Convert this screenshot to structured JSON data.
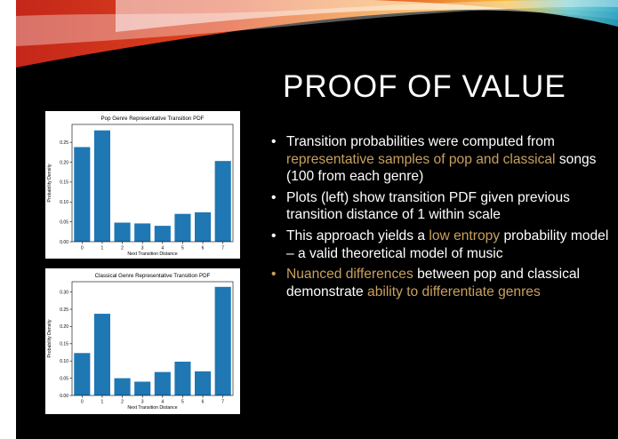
{
  "slide": {
    "title": "PROOF OF VALUE",
    "bullets": [
      {
        "parts": [
          {
            "text": "Transition probabilities were computed from ",
            "hl": false
          },
          {
            "text": "representative samples of pop and classical",
            "hl": true
          },
          {
            "text": " songs (100 from each genre)",
            "hl": false
          }
        ]
      },
      {
        "parts": [
          {
            "text": "Plots (left) show transition PDF given previous transition distance of 1 within scale",
            "hl": false
          }
        ]
      },
      {
        "parts": [
          {
            "text": "This approach yields a ",
            "hl": false
          },
          {
            "text": "low entropy",
            "hl": true
          },
          {
            "text": " probability model – a valid theoretical model of music",
            "hl": false
          }
        ]
      },
      {
        "parts": [
          {
            "text": "Nuanced differences",
            "hl": true
          },
          {
            "text": " between pop and classical demonstrate ",
            "hl": false
          },
          {
            "text": "ability to differentiate genres",
            "hl": true
          }
        ]
      }
    ],
    "colors": {
      "background": "#000000",
      "text": "#ffffff",
      "highlight": "#c9a15c",
      "bar": "#1f77b4"
    }
  },
  "chart_data": [
    {
      "type": "bar",
      "title": "Pop Genre Representative Transition PDF",
      "xlabel": "Next Transition Distance",
      "ylabel": "Probability Density",
      "categories": [
        "0",
        "1",
        "2",
        "3",
        "4",
        "5",
        "6",
        "7"
      ],
      "values": [
        0.238,
        0.28,
        0.048,
        0.046,
        0.04,
        0.07,
        0.074,
        0.203
      ],
      "ylim": [
        0,
        0.295
      ],
      "yticks": [
        "0.00",
        "0.05",
        "0.10",
        "0.15",
        "0.20",
        "0.25"
      ],
      "grid": false
    },
    {
      "type": "bar",
      "title": "Classical Genre Representative Transition PDF",
      "xlabel": "Next Transition Distance",
      "ylabel": "Probability Density",
      "categories": [
        "0",
        "1",
        "2",
        "3",
        "4",
        "5",
        "6",
        "7"
      ],
      "values": [
        0.123,
        0.237,
        0.05,
        0.04,
        0.068,
        0.098,
        0.07,
        0.315
      ],
      "ylim": [
        0,
        0.33
      ],
      "yticks": [
        "0.00",
        "0.05",
        "0.10",
        "0.15",
        "0.20",
        "0.25",
        "0.30"
      ],
      "grid": false
    }
  ]
}
